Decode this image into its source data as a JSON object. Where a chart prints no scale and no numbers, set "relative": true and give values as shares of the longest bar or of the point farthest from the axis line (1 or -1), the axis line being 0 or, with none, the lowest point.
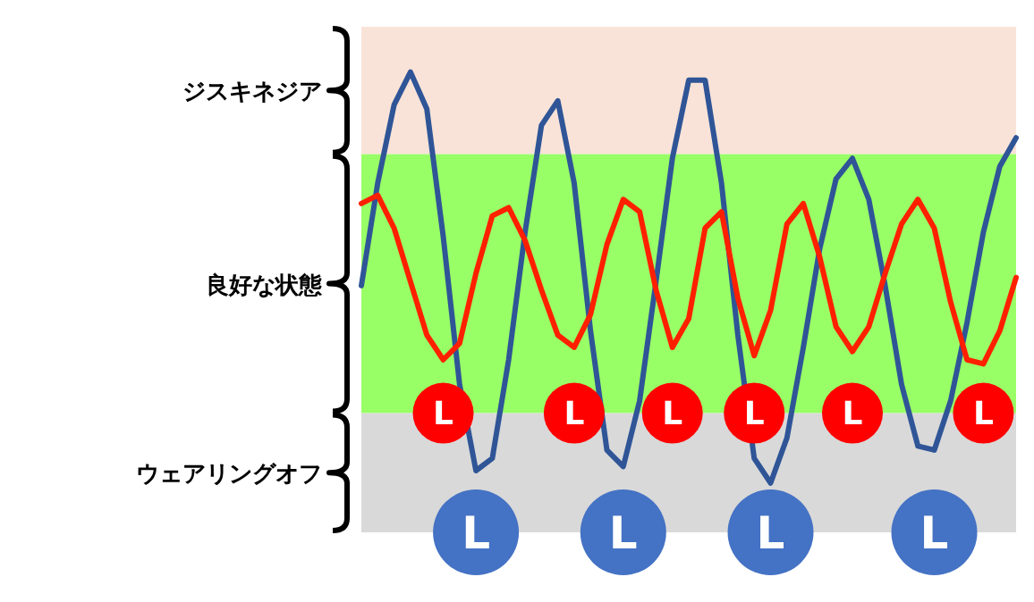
{
  "chart_data": {
    "type": "line",
    "relative": true,
    "categories": [
      null,
      null,
      null,
      null,
      null,
      null,
      null,
      null,
      null,
      null,
      null,
      null,
      null,
      null,
      null,
      null,
      null,
      null,
      null,
      null,
      null,
      null,
      null,
      null,
      null,
      null,
      null,
      null,
      null,
      null,
      null,
      null,
      null,
      null,
      null,
      null,
      null,
      null,
      null,
      null,
      null
    ],
    "series": [
      {
        "color": "#2f5597",
        "values": [
          0.48,
          0.73,
          0.92,
          1.0,
          0.91,
          0.6,
          0.24,
          0.03,
          0.06,
          0.3,
          0.61,
          0.87,
          0.93,
          0.73,
          0.37,
          0.08,
          0.04,
          0.2,
          0.49,
          0.79,
          0.98,
          0.98,
          0.73,
          0.36,
          0.06,
          0,
          0.11,
          0.33,
          0.57,
          0.74,
          0.79,
          0.69,
          0.48,
          0.24,
          0.09,
          0.08,
          0.2,
          0.39,
          0.61,
          0.77,
          0.84
        ]
      },
      {
        "color": "#ff2000",
        "values": [
          0.68,
          0.7,
          0.62,
          0.49,
          0.36,
          0.3,
          0.34,
          0.51,
          0.65,
          0.67,
          0.59,
          0.47,
          0.36,
          0.33,
          0.41,
          0.58,
          0.69,
          0.66,
          0.47,
          0.33,
          0.4,
          0.62,
          0.66,
          0.45,
          0.31,
          0.42,
          0.63,
          0.68,
          0.55,
          0.38,
          0.32,
          0.38,
          0.51,
          0.63,
          0.69,
          0.62,
          0.44,
          0.3,
          0.29,
          0.37,
          0.5
        ]
      }
    ],
    "bands": [
      {
        "axis": "y",
        "from": 0.8,
        "to": 1.11,
        "label": "ジスキネジア",
        "color": "#f9e3d8"
      },
      {
        "axis": "y",
        "from": 0.17,
        "to": 0.8,
        "label": "良好な状態",
        "color": "#99ff66"
      },
      {
        "axis": "y",
        "from": -0.12,
        "to": 0.17,
        "label": "ウェアリングオフ",
        "color": "#d9d9d9"
      }
    ],
    "annotations": [
      "L",
      "L",
      "L",
      "L",
      "L",
      "L",
      "L",
      "L",
      "L",
      "L"
    ]
  }
}
